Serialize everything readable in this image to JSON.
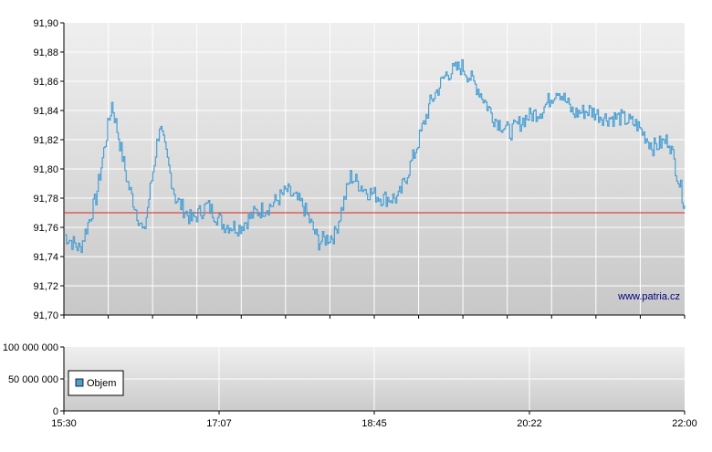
{
  "chart_data": [
    {
      "type": "line",
      "title": "",
      "xlabel": "",
      "ylabel": "",
      "ylim": [
        91.7,
        91.9
      ],
      "yticks": [
        "91,90",
        "91,88",
        "91,86",
        "91,84",
        "91,82",
        "91,80",
        "91,78",
        "91,76",
        "91,74",
        "91,72",
        "91,70"
      ],
      "reference_line": 91.77,
      "grid": true,
      "watermark": "www.patria.cz",
      "series": [
        {
          "name": "",
          "x": [
            "15:30",
            "15:40",
            "15:50",
            "16:00",
            "16:10",
            "16:20",
            "16:30",
            "16:40",
            "16:50",
            "17:00",
            "17:10",
            "17:20",
            "17:30",
            "17:40",
            "17:50",
            "18:00",
            "18:10",
            "18:20",
            "18:30",
            "18:40",
            "18:50",
            "19:00",
            "19:10",
            "19:20",
            "19:30",
            "19:40",
            "19:50",
            "20:00",
            "20:10",
            "20:20",
            "20:30",
            "20:40",
            "20:50",
            "21:00",
            "21:10",
            "21:20",
            "21:30",
            "21:40",
            "21:50",
            "22:00"
          ],
          "values": [
            91.755,
            91.745,
            91.78,
            91.845,
            91.79,
            91.755,
            91.83,
            91.78,
            91.765,
            91.775,
            91.762,
            91.76,
            91.77,
            91.775,
            91.785,
            91.775,
            91.75,
            91.755,
            91.795,
            91.785,
            91.78,
            91.78,
            91.81,
            91.845,
            91.865,
            91.87,
            91.855,
            91.835,
            91.825,
            91.835,
            91.84,
            91.855,
            91.838,
            91.84,
            91.835,
            91.835,
            91.83,
            91.815,
            91.82,
            91.775
          ]
        }
      ]
    },
    {
      "type": "bar",
      "title": "",
      "ylim": [
        0,
        100000000
      ],
      "yticks": [
        "100 000 000",
        "50 000 000",
        "0"
      ],
      "xticks": [
        "15:30",
        "17:07",
        "18:45",
        "20:22",
        "22:00"
      ],
      "series": [
        {
          "name": "Objem",
          "values": []
        }
      ],
      "legend_position": "bottom-left",
      "colors": {
        "legend_swatch": "#4a9fd3"
      }
    }
  ],
  "colors": {
    "line": "#4a9fd3",
    "reference": "#dd2222",
    "plot_top": "#efefef",
    "plot_bottom": "#cacaca",
    "axis": "#000000",
    "grid": "#ffffff"
  }
}
